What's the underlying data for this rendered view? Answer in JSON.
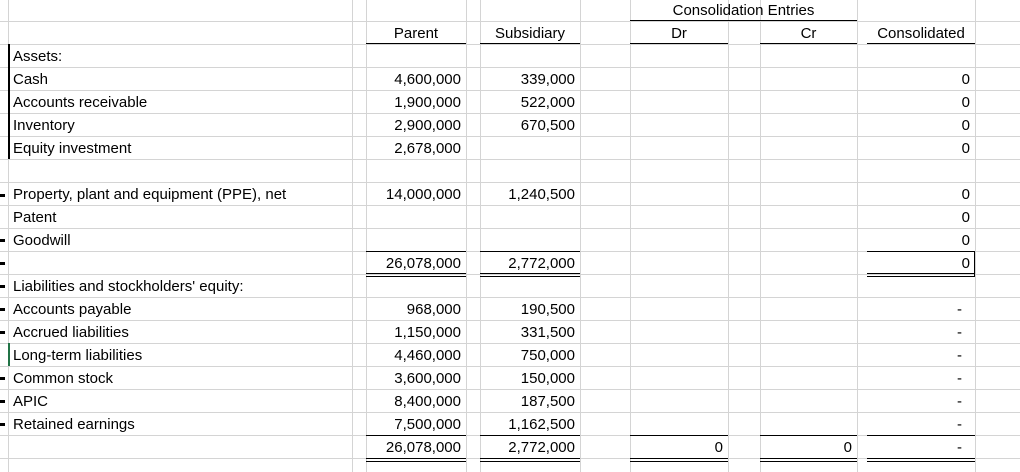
{
  "headers": {
    "parent": "Parent",
    "subsidiary": "Subsidiary",
    "consolidation_entries": "Consolidation Entries",
    "dr": "Dr",
    "cr": "Cr",
    "consolidated": "Consolidated"
  },
  "labels": {
    "assets": "Assets:",
    "cash": "Cash",
    "ar": "Accounts receivable",
    "inventory": "Inventory",
    "equity_investment": "Equity investment",
    "ppe": "Property, plant and equipment (PPE), net",
    "patent": "Patent",
    "goodwill": "Goodwill",
    "liab_header": "Liabilities and stockholders' equity:",
    "ap": "Accounts payable",
    "accrued": "Accrued liabilities",
    "ltl": "Long-term liabilities",
    "common": "Common stock",
    "apic": "APIC",
    "re": "Retained earnings"
  },
  "parent": {
    "cash": "4,600,000",
    "ar": "1,900,000",
    "inventory": "2,900,000",
    "equity_investment": "2,678,000",
    "ppe": "14,000,000",
    "total_assets": "26,078,000",
    "ap": "968,000",
    "accrued": "1,150,000",
    "ltl": "4,460,000",
    "common": "3,600,000",
    "apic": "8,400,000",
    "re": "7,500,000",
    "total_le": "26,078,000"
  },
  "subsidiary": {
    "cash": "339,000",
    "ar": "522,000",
    "inventory": "670,500",
    "ppe": "1,240,500",
    "total_assets": "2,772,000",
    "ap": "190,500",
    "accrued": "331,500",
    "ltl": "750,000",
    "common": "150,000",
    "apic": "187,500",
    "re": "1,162,500",
    "total_le": "2,772,000"
  },
  "entries": {
    "dr_total": "0",
    "cr_total": "0"
  },
  "consolidated": {
    "cash": "0",
    "ar": "0",
    "inventory": "0",
    "equity_investment": "0",
    "ppe": "0",
    "patent": "0",
    "goodwill": "0",
    "total_assets": "0",
    "ap": "-",
    "accrued": "-",
    "ltl": "-",
    "common": "-",
    "apic": "-",
    "re": "-",
    "total_le": "-"
  }
}
